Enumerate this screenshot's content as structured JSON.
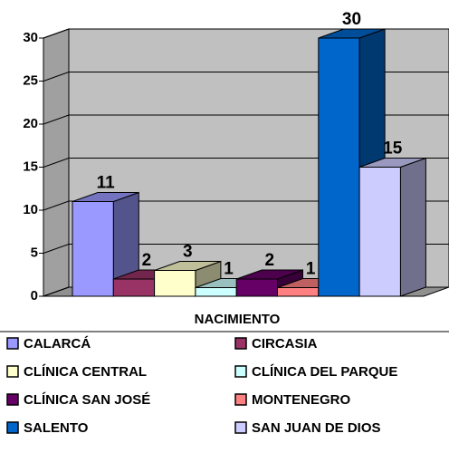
{
  "chart_data": {
    "type": "bar3d",
    "categories": [
      "NACIMIENTO"
    ],
    "x_label": "NACIMIENTO",
    "series": [
      {
        "name": "CALARCÁ",
        "color": "#9999ff",
        "values": [
          11
        ]
      },
      {
        "name": "CIRCASIA",
        "color": "#993366",
        "values": [
          2
        ]
      },
      {
        "name": "CLÍNICA CENTRAL",
        "color": "#ffffcc",
        "values": [
          3
        ]
      },
      {
        "name": "CLÍNICA DEL PARQUE",
        "color": "#ccffff",
        "values": [
          1
        ]
      },
      {
        "name": "CLÍNICA SAN JOSÉ",
        "color": "#660066",
        "values": [
          2
        ]
      },
      {
        "name": "MONTENEGRO",
        "color": "#ff8080",
        "values": [
          1
        ]
      },
      {
        "name": "SALENTO",
        "color": "#0066cc",
        "values": [
          30
        ]
      },
      {
        "name": "SAN JUAN DE DIOS",
        "color": "#ccccff",
        "values": [
          15
        ]
      }
    ],
    "ylim": [
      0,
      30
    ],
    "yticks": [
      0,
      5,
      10,
      15,
      20,
      25,
      30
    ],
    "grid": true,
    "legend": "bottom"
  }
}
